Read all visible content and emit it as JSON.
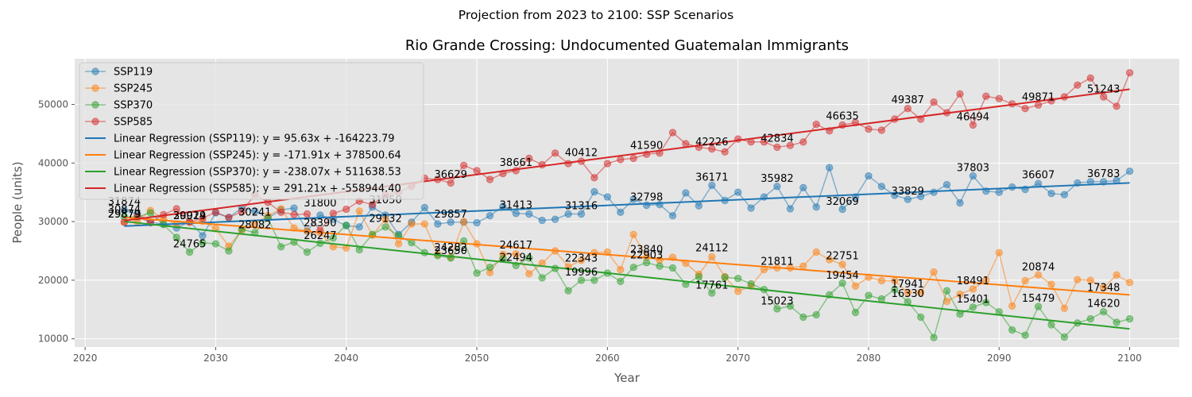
{
  "suptitle": "Projection from 2023 to 2100: SSP Scenarios",
  "chart_data": {
    "type": "line",
    "title": "Rio Grande Crossing: Undocumented Guatemalan Immigrants",
    "xlabel": "Year",
    "ylabel": "People (units)",
    "xlim": [
      2019.2,
      2103.8
    ],
    "ylim": [
      8600,
      57800
    ],
    "xticks": [
      2020,
      2030,
      2040,
      2050,
      2060,
      2070,
      2080,
      2090,
      2100
    ],
    "yticks": [
      10000,
      20000,
      30000,
      40000,
      50000
    ],
    "grid": true,
    "legend_position": "upper-left",
    "x": [
      2023,
      2024,
      2025,
      2026,
      2027,
      2028,
      2029,
      2030,
      2031,
      2032,
      2033,
      2034,
      2035,
      2036,
      2037,
      2038,
      2039,
      2040,
      2041,
      2042,
      2043,
      2044,
      2045,
      2046,
      2047,
      2048,
      2049,
      2050,
      2051,
      2052,
      2053,
      2054,
      2055,
      2056,
      2057,
      2058,
      2059,
      2060,
      2061,
      2062,
      2063,
      2064,
      2065,
      2066,
      2067,
      2068,
      2069,
      2070,
      2071,
      2072,
      2073,
      2074,
      2075,
      2076,
      2077,
      2078,
      2079,
      2080,
      2081,
      2082,
      2083,
      2084,
      2085,
      2086,
      2087,
      2088,
      2089,
      2090,
      2091,
      2092,
      2093,
      2094,
      2095,
      2096,
      2097,
      2098,
      2099,
      2100
    ],
    "series": [
      {
        "name": "SSP119",
        "color": "#1f77b4",
        "values": [
          31900,
          31300,
          29900,
          29600,
          28900,
          30000,
          27600,
          31500,
          30700,
          32300,
          31800,
          30600,
          32000,
          32300,
          28400,
          31100,
          30400,
          29300,
          29100,
          32500,
          31100,
          27800,
          29900,
          32400,
          29600,
          29900,
          29900,
          29800,
          31000,
          32600,
          31400,
          31300,
          30200,
          30400,
          31300,
          31300,
          35100,
          34200,
          31600,
          33800,
          32800,
          32900,
          31000,
          34900,
          32700,
          36200,
          33600,
          35000,
          32300,
          34200,
          36000,
          32200,
          35800,
          32500,
          39200,
          32100,
          34200,
          37800,
          36000,
          34500,
          33800,
          34300,
          35000,
          36300,
          33200,
          37800,
          35200,
          35000,
          35900,
          35500,
          36500,
          34800,
          34600,
          36600,
          36800,
          36800,
          37000,
          38600
        ]
      },
      {
        "name": "SSP245",
        "color": "#ff7f0e",
        "values": [
          29900,
          30000,
          31900,
          30500,
          29600,
          29900,
          30100,
          28800,
          25800,
          28500,
          29700,
          31000,
          32200,
          28900,
          28400,
          28100,
          25700,
          25500,
          31800,
          27700,
          30400,
          26200,
          29600,
          29600,
          24400,
          23900,
          30000,
          26200,
          21300,
          24400,
          24500,
          21100,
          22900,
          25000,
          22300,
          23400,
          24700,
          24800,
          21800,
          27800,
          23900,
          23400,
          23900,
          22900,
          21000,
          24000,
          20600,
          18100,
          19000,
          21800,
          22100,
          22100,
          22400,
          24800,
          23500,
          22700,
          19000,
          20500,
          19900,
          19900,
          17900,
          17900,
          21400,
          16400,
          17600,
          18500,
          20000,
          24700,
          15600,
          19900,
          20900,
          19300,
          15200,
          20100,
          20000,
          18700,
          20900,
          19600
        ]
      },
      {
        "name": "SSP370",
        "color": "#2ca02c",
        "values": [
          30800,
          30800,
          31500,
          29500,
          27300,
          24800,
          26400,
          26200,
          25000,
          28700,
          28100,
          30600,
          25700,
          26500,
          24800,
          26300,
          27200,
          29400,
          25200,
          27800,
          29100,
          27600,
          26400,
          24700,
          24200,
          23800,
          26700,
          21200,
          22200,
          23700,
          22500,
          23800,
          20400,
          22000,
          18200,
          20000,
          20000,
          21200,
          19800,
          22200,
          23000,
          22400,
          22100,
          19300,
          20600,
          17800,
          20500,
          20300,
          19400,
          18400,
          15100,
          15600,
          13700,
          14100,
          17500,
          19500,
          14500,
          17400,
          16800,
          18400,
          16300,
          13700,
          10200,
          18200,
          14200,
          15400,
          16200,
          14600,
          11500,
          10600,
          15500,
          12400,
          10300,
          12700,
          13400,
          14600,
          12800,
          13400
        ]
      },
      {
        "name": "SSP585",
        "color": "#d62728",
        "values": [
          29900,
          30900,
          29800,
          31200,
          32200,
          29900,
          30600,
          31600,
          30700,
          31700,
          34600,
          33300,
          31600,
          31200,
          31300,
          28500,
          31400,
          32100,
          33500,
          32900,
          34600,
          35000,
          36000,
          37400,
          37200,
          36600,
          39600,
          38700,
          37200,
          38200,
          38700,
          40800,
          39700,
          41700,
          39900,
          40300,
          37500,
          39900,
          40600,
          40800,
          41500,
          41700,
          45200,
          43300,
          42700,
          42400,
          41900,
          44100,
          43600,
          43600,
          42700,
          43000,
          43600,
          46600,
          45500,
          46500,
          46900,
          45800,
          45600,
          47500,
          49300,
          47500,
          50400,
          48600,
          51800,
          46500,
          51400,
          51000,
          50100,
          49300,
          49900,
          50600,
          51300,
          53300,
          54500,
          51300,
          49700,
          55400
        ]
      }
    ],
    "regressions": [
      {
        "name": "Linear Regression (SSP119): y = 95.63x + -164223.79",
        "color": "#1f77b4",
        "slope": 95.63,
        "intercept": -164223.79
      },
      {
        "name": "Linear Regression (SSP245): y = -171.91x + 378500.64",
        "color": "#ff7f0e",
        "slope": -171.91,
        "intercept": 378500.64
      },
      {
        "name": "Linear Regression (SSP370): y = -238.07x + 511638.53",
        "color": "#2ca02c",
        "slope": -238.07,
        "intercept": 511638.53
      },
      {
        "name": "Linear Regression (SSP585): y = 291.21x + -558944.40",
        "color": "#d62728",
        "slope": 291.21,
        "intercept": -558944.4
      }
    ],
    "annotations": [
      {
        "x": 2023,
        "y": 32070,
        "text": "31874"
      },
      {
        "x": 2023,
        "y": 30700,
        "text": "30874"
      },
      {
        "x": 2023,
        "y": 29900,
        "text": "29879"
      },
      {
        "x": 2023,
        "y": 29900,
        "text": "29879"
      },
      {
        "x": 2028,
        "y": 29600,
        "text": "29924"
      },
      {
        "x": 2028,
        "y": 29600,
        "text": "30019"
      },
      {
        "x": 2028,
        "y": 24765,
        "text": "24765"
      },
      {
        "x": 2033,
        "y": 30241,
        "text": "30241"
      },
      {
        "x": 2033,
        "y": 28082,
        "text": "28082"
      },
      {
        "x": 2038,
        "y": 28390,
        "text": "28390"
      },
      {
        "x": 2038,
        "y": 26247,
        "text": "26247"
      },
      {
        "x": 2038,
        "y": 31800,
        "text": "31800"
      },
      {
        "x": 2043,
        "y": 32350,
        "text": "31050"
      },
      {
        "x": 2043,
        "y": 29132,
        "text": "29132"
      },
      {
        "x": 2048,
        "y": 29857,
        "text": "29857"
      },
      {
        "x": 2048,
        "y": 36629,
        "text": "36629"
      },
      {
        "x": 2048,
        "y": 24202,
        "text": "24282"
      },
      {
        "x": 2048,
        "y": 23650,
        "text": "23650"
      },
      {
        "x": 2053,
        "y": 31413,
        "text": "31413"
      },
      {
        "x": 2053,
        "y": 38661,
        "text": "38661"
      },
      {
        "x": 2053,
        "y": 24617,
        "text": "24617"
      },
      {
        "x": 2053,
        "y": 22494,
        "text": "22494"
      },
      {
        "x": 2058,
        "y": 40412,
        "text": "40412"
      },
      {
        "x": 2058,
        "y": 31316,
        "text": "31316"
      },
      {
        "x": 2058,
        "y": 22343,
        "text": "22343"
      },
      {
        "x": 2058,
        "y": 19996,
        "text": "19996"
      },
      {
        "x": 2063,
        "y": 41590,
        "text": "41590"
      },
      {
        "x": 2063,
        "y": 32798,
        "text": "32798"
      },
      {
        "x": 2063,
        "y": 23840,
        "text": "23840"
      },
      {
        "x": 2063,
        "y": 22903,
        "text": "22903"
      },
      {
        "x": 2068,
        "y": 42226,
        "text": "42226"
      },
      {
        "x": 2068,
        "y": 36171,
        "text": "36171"
      },
      {
        "x": 2068,
        "y": 24112,
        "text": "24112"
      },
      {
        "x": 2068,
        "y": 17761,
        "text": "17761"
      },
      {
        "x": 2073,
        "y": 42834,
        "text": "42834"
      },
      {
        "x": 2073,
        "y": 35982,
        "text": "35982"
      },
      {
        "x": 2073,
        "y": 21811,
        "text": "21811"
      },
      {
        "x": 2073,
        "y": 15023,
        "text": "15023"
      },
      {
        "x": 2078,
        "y": 46635,
        "text": "46635"
      },
      {
        "x": 2078,
        "y": 32069,
        "text": "32069"
      },
      {
        "x": 2078,
        "y": 22751,
        "text": "22751"
      },
      {
        "x": 2078,
        "y": 19454,
        "text": "19454"
      },
      {
        "x": 2083,
        "y": 49387,
        "text": "49387"
      },
      {
        "x": 2083,
        "y": 33829,
        "text": "33829"
      },
      {
        "x": 2083,
        "y": 17941,
        "text": "17941"
      },
      {
        "x": 2083,
        "y": 16330,
        "text": "16330"
      },
      {
        "x": 2088,
        "y": 46494,
        "text": "46494"
      },
      {
        "x": 2088,
        "y": 37803,
        "text": "37803"
      },
      {
        "x": 2088,
        "y": 18491,
        "text": "18491"
      },
      {
        "x": 2088,
        "y": 15401,
        "text": "15401"
      },
      {
        "x": 2093,
        "y": 49871,
        "text": "49871"
      },
      {
        "x": 2093,
        "y": 36607,
        "text": "36607"
      },
      {
        "x": 2093,
        "y": 20874,
        "text": "20874"
      },
      {
        "x": 2093,
        "y": 15479,
        "text": "15479"
      },
      {
        "x": 2098,
        "y": 51243,
        "text": "51243"
      },
      {
        "x": 2098,
        "y": 36783,
        "text": "36783"
      },
      {
        "x": 2098,
        "y": 17348,
        "text": "17348"
      },
      {
        "x": 2098,
        "y": 14620,
        "text": "14620"
      }
    ]
  }
}
